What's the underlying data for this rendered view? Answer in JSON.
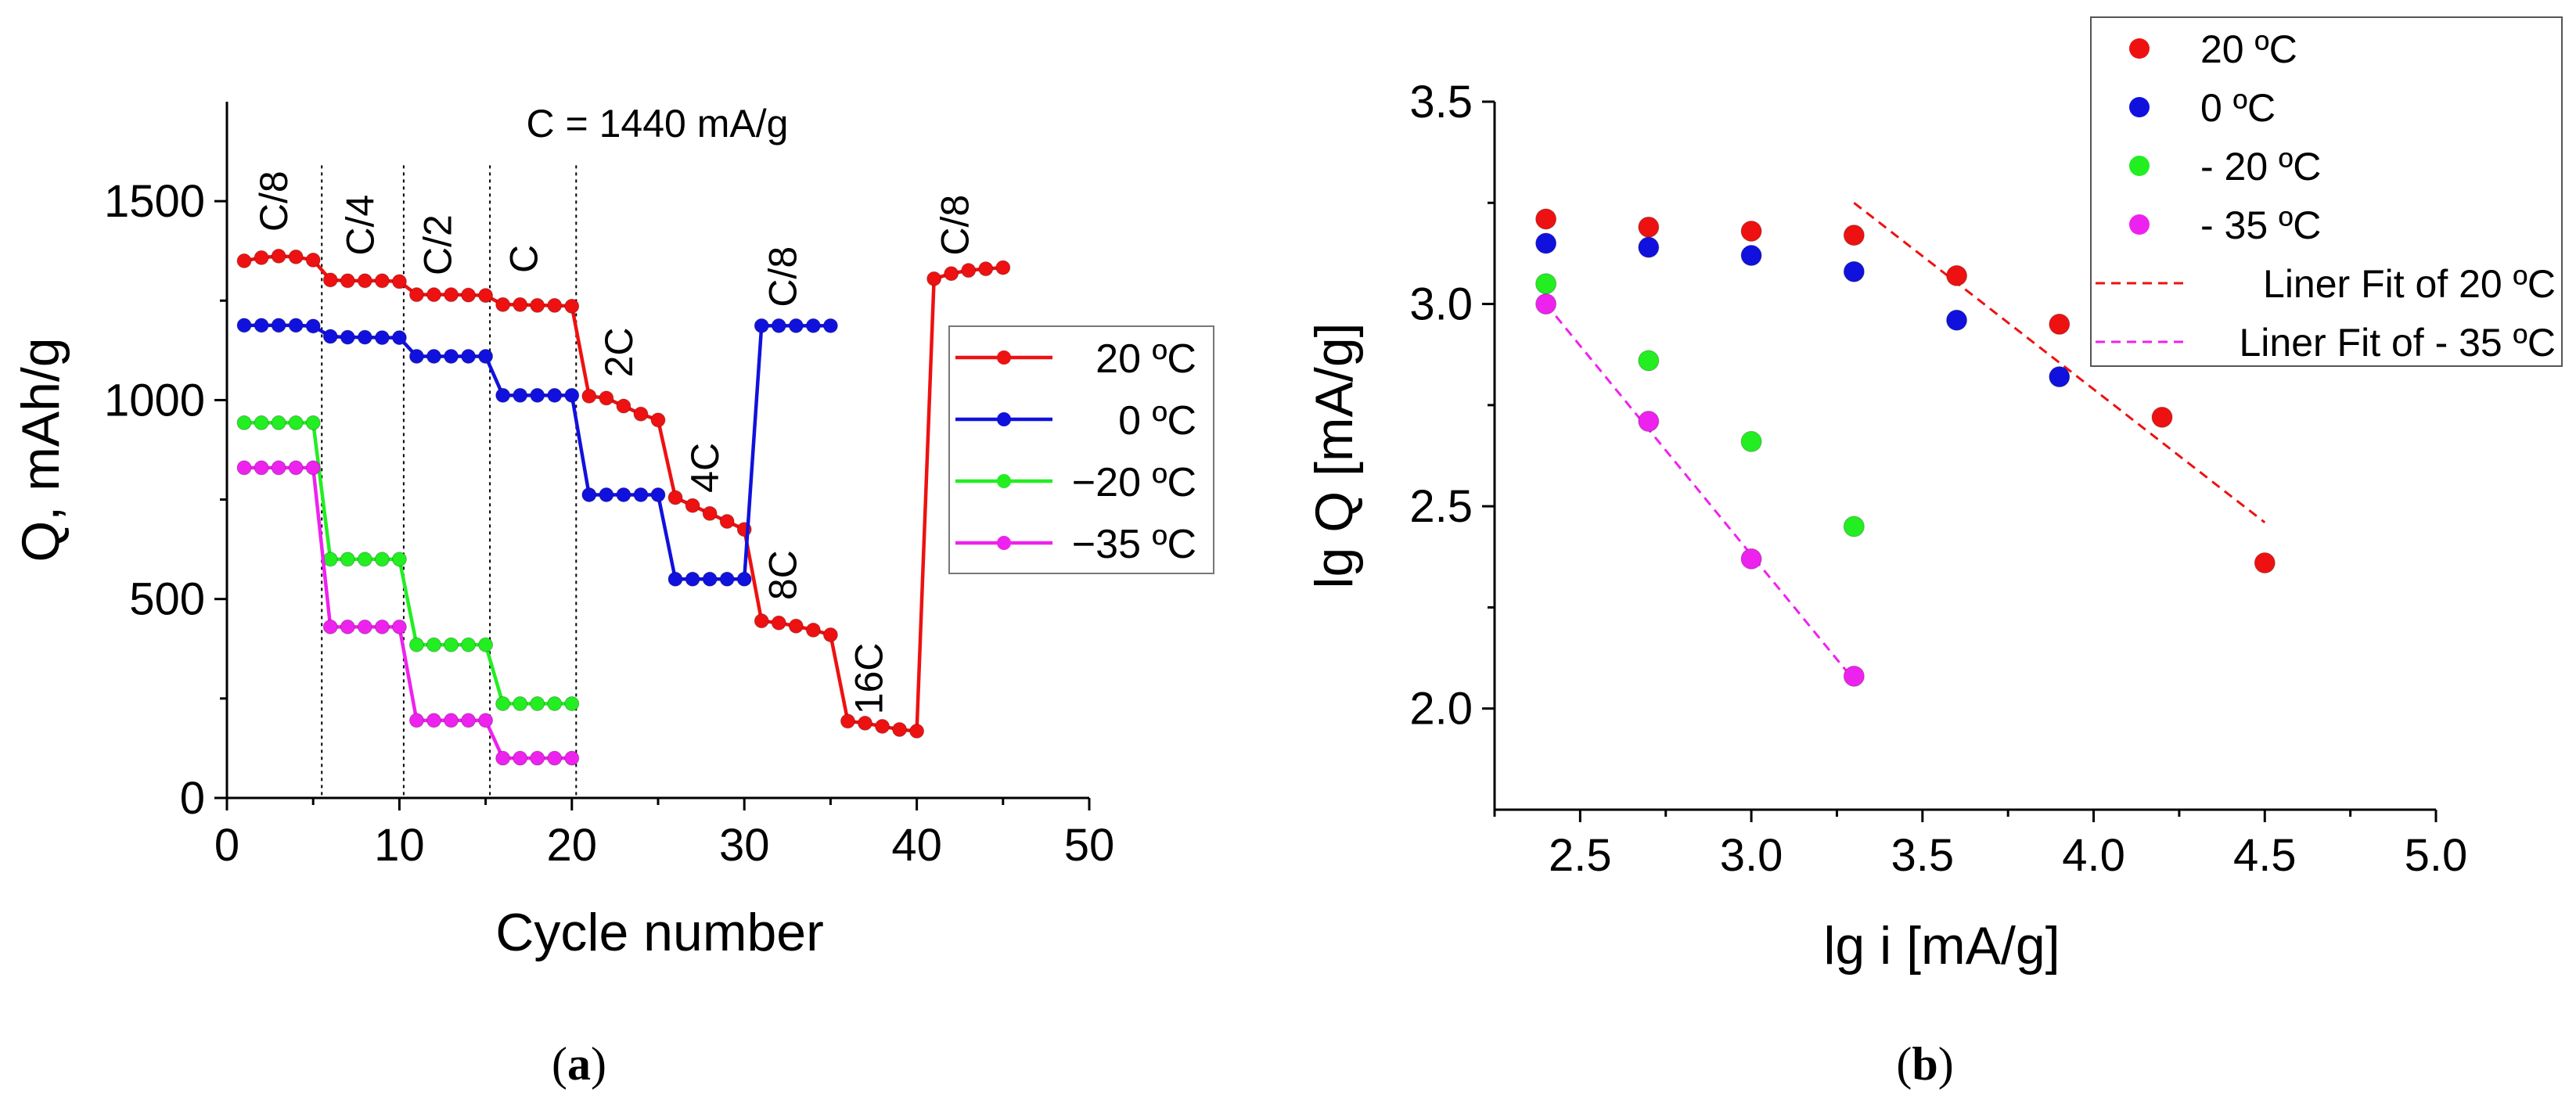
{
  "chart_data": [
    {
      "id": "a",
      "type": "line",
      "panel_label": "a",
      "xlabel": "Cycle number",
      "ylabel": "Q, mAh/g",
      "xlim": [
        0,
        50
      ],
      "ylim": [
        0,
        1750
      ],
      "xticks": [
        0,
        10,
        20,
        30,
        40,
        50
      ],
      "yticks": [
        0,
        500,
        1000,
        1500
      ],
      "annotation": "C = 1440 mA/g",
      "separators": [
        5.5,
        10.25,
        15.25,
        20.25
      ],
      "rate_labels": [
        {
          "text": "C/8",
          "x": 3.5,
          "y": 1500
        },
        {
          "text": "C/4",
          "x": 8.5,
          "y": 1440
        },
        {
          "text": "C/2",
          "x": 13,
          "y": 1390
        },
        {
          "text": "C",
          "x": 18,
          "y": 1355
        },
        {
          "text": "2C",
          "x": 23.5,
          "y": 1120
        },
        {
          "text": "4C",
          "x": 28.5,
          "y": 830
        },
        {
          "text": "C/8",
          "x": 33,
          "y": 1310
        },
        {
          "text": "8C",
          "x": 33,
          "y": 560
        },
        {
          "text": "16C",
          "x": 38,
          "y": 300
        },
        {
          "text": "C/8",
          "x": 43,
          "y": 1440
        }
      ],
      "legend_position": "right",
      "series": [
        {
          "name": "20 ºC",
          "color": "#ee1111",
          "x": [
            1,
            2,
            3,
            4,
            5,
            6,
            7,
            8,
            9,
            10,
            11,
            12,
            13,
            14,
            15,
            16,
            17,
            18,
            19,
            20,
            21,
            22,
            23,
            24,
            25,
            26,
            27,
            28,
            29,
            30,
            31,
            32,
            33,
            34,
            35,
            36,
            37,
            38,
            39,
            40,
            41,
            42,
            43,
            44,
            45
          ],
          "y": [
            1350,
            1358,
            1362,
            1360,
            1352,
            1302,
            1300,
            1300,
            1300,
            1298,
            1265,
            1265,
            1265,
            1264,
            1263,
            1240,
            1240,
            1238,
            1238,
            1236,
            1010,
            1005,
            985,
            965,
            950,
            755,
            735,
            715,
            695,
            675,
            445,
            440,
            432,
            422,
            410,
            193,
            188,
            180,
            172,
            168,
            1305,
            1318,
            1326,
            1330,
            1333
          ]
        },
        {
          "name": "0 ºC",
          "color": "#1111dd",
          "x": [
            1,
            2,
            3,
            4,
            5,
            6,
            7,
            8,
            9,
            10,
            11,
            12,
            13,
            14,
            15,
            16,
            17,
            18,
            19,
            20,
            21,
            22,
            23,
            24,
            25,
            26,
            27,
            28,
            29,
            30,
            31,
            32,
            33,
            34,
            35
          ],
          "y": [
            1188,
            1188,
            1188,
            1188,
            1186,
            1160,
            1158,
            1158,
            1157,
            1157,
            1110,
            1110,
            1110,
            1110,
            1110,
            1012,
            1012,
            1012,
            1012,
            1012,
            762,
            762,
            762,
            762,
            762,
            550,
            550,
            550,
            550,
            550,
            1187,
            1187,
            1187,
            1187,
            1187
          ]
        },
        {
          "name": "−20 ºC",
          "color": "#22ee22",
          "x": [
            1,
            2,
            3,
            4,
            5,
            6,
            7,
            8,
            9,
            10,
            11,
            12,
            13,
            14,
            15,
            16,
            17,
            18,
            19,
            20
          ],
          "y": [
            943,
            943,
            943,
            943,
            943,
            600,
            600,
            600,
            600,
            600,
            385,
            385,
            385,
            385,
            385,
            237,
            237,
            237,
            237,
            237
          ]
        },
        {
          "name": "−35 ºC",
          "color": "#ee22ee",
          "x": [
            1,
            2,
            3,
            4,
            5,
            6,
            7,
            8,
            9,
            10,
            11,
            12,
            13,
            14,
            15,
            16,
            17,
            18,
            19,
            20
          ],
          "y": [
            830,
            830,
            830,
            830,
            830,
            430,
            430,
            430,
            430,
            430,
            195,
            195,
            195,
            195,
            195,
            100,
            100,
            100,
            100,
            100
          ]
        }
      ]
    },
    {
      "id": "b",
      "type": "scatter",
      "panel_label": "b",
      "xlabel": "lg i [mA/g]",
      "ylabel": "lg Q [mA/g]",
      "xlim": [
        2.25,
        5.0
      ],
      "ylim": [
        1.75,
        3.5
      ],
      "xticks": [
        2.5,
        3.0,
        3.5,
        4.0,
        4.5,
        5.0
      ],
      "yticks": [
        2.0,
        2.5,
        3.0,
        3.5
      ],
      "legend_position": "top-right",
      "series": [
        {
          "name": "20 ºC",
          "color": "#ee1111",
          "x": [
            2.4,
            2.7,
            3.0,
            3.3,
            3.6,
            3.9,
            4.2,
            4.5
          ],
          "y": [
            3.21,
            3.19,
            3.18,
            3.17,
            3.07,
            2.95,
            2.72,
            2.36
          ]
        },
        {
          "name": "0 ºC",
          "color": "#1111dd",
          "x": [
            2.4,
            2.7,
            3.0,
            3.3,
            3.6,
            3.9
          ],
          "y": [
            3.15,
            3.14,
            3.12,
            3.08,
            2.96,
            2.82
          ]
        },
        {
          "name": "- 20 ºC",
          "color": "#22ee22",
          "x": [
            2.4,
            2.7,
            3.0,
            3.3
          ],
          "y": [
            3.05,
            2.86,
            2.66,
            2.45
          ]
        },
        {
          "name": "- 35 ºC",
          "color": "#ee22ee",
          "x": [
            2.4,
            2.7,
            3.0,
            3.3
          ],
          "y": [
            3.0,
            2.71,
            2.37,
            2.08
          ]
        }
      ],
      "fits": [
        {
          "name": "Liner Fit of 20 ºC",
          "color": "#ee1111",
          "x": [
            3.3,
            4.5
          ],
          "y": [
            3.25,
            2.46
          ]
        },
        {
          "name": "Liner Fit of - 35 ºC",
          "color": "#ee22ee",
          "x": [
            2.4,
            3.3
          ],
          "y": [
            3.0,
            2.07
          ]
        }
      ]
    }
  ]
}
